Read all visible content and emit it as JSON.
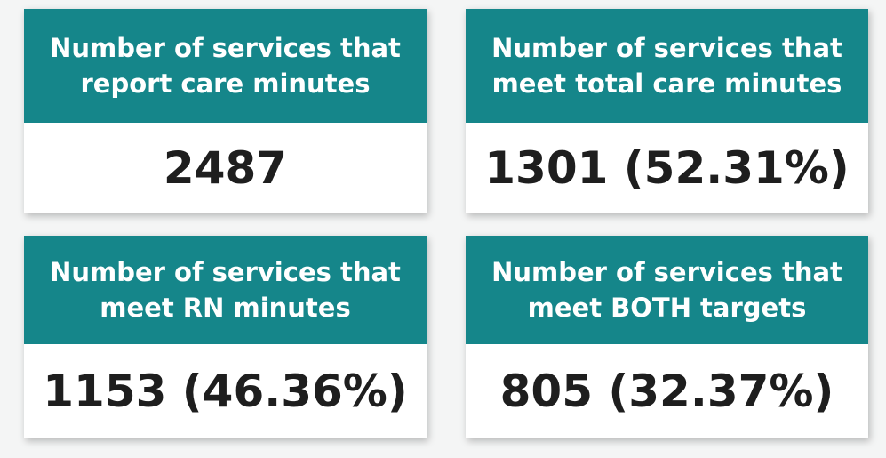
{
  "cards": [
    {
      "label": [
        "Number of services that",
        "report care minutes"
      ],
      "value": "2487"
    },
    {
      "label": [
        "Number of services that",
        "meet total care minutes"
      ],
      "value": "1301 (52.31%)"
    },
    {
      "label": [
        "Number of services that",
        "meet RN minutes"
      ],
      "value": "1153 (46.36%)"
    },
    {
      "label": [
        "Number of services that",
        "meet BOTH targets"
      ],
      "value": "805 (32.37%)"
    }
  ]
}
